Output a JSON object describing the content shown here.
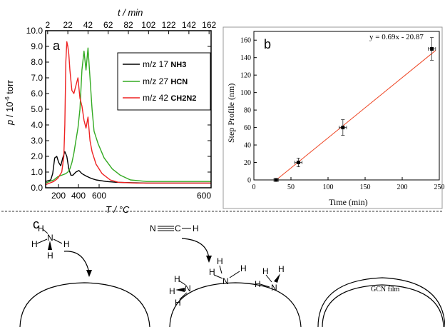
{
  "chart_data": [
    {
      "panel": "a",
      "type": "line",
      "xlabel": "T / °C",
      "x2label": "t / min",
      "ylabel": "p / 10-6 torr",
      "ylim": [
        0.0,
        10.0
      ],
      "yticks": [
        "0.0",
        "1.0",
        "2.0",
        "3.0",
        "4.0",
        "5.0",
        "6.0",
        "7.0",
        "8.0",
        "9.0",
        "10.0"
      ],
      "xticks": [
        "200",
        "400",
        "600",
        "600"
      ],
      "x2ticks": [
        "2",
        "22",
        "42",
        "62",
        "82",
        "102",
        "122",
        "142",
        "162"
      ],
      "x2lim": [
        0,
        164
      ],
      "series": [
        {
          "name": "m/z 17",
          "formula": "NH3",
          "color": "#000000",
          "t": [
            0,
            5,
            7,
            9,
            11,
            13,
            15,
            17,
            19,
            21,
            23,
            25,
            27,
            30,
            33,
            36,
            40,
            45,
            50,
            60,
            70,
            80,
            100,
            164
          ],
          "p": [
            0.4,
            0.5,
            0.9,
            1.9,
            2.0,
            1.6,
            1.4,
            1.9,
            2.3,
            2.0,
            1.2,
            0.8,
            0.8,
            1.0,
            1.1,
            0.9,
            0.75,
            0.6,
            0.5,
            0.4,
            0.35,
            0.33,
            0.3,
            0.3
          ]
        },
        {
          "name": "m/z 27",
          "formula": "HCN",
          "color": "#33aa22",
          "t": [
            0,
            8,
            12,
            16,
            20,
            22,
            24,
            26,
            28,
            30,
            32,
            34,
            36,
            38,
            40,
            42,
            44,
            46,
            48,
            52,
            58,
            66,
            74,
            84,
            100,
            130,
            164
          ],
          "p": [
            0.3,
            0.5,
            0.7,
            0.8,
            0.9,
            1.0,
            1.2,
            1.6,
            2.2,
            3.0,
            3.8,
            5.0,
            7.5,
            8.7,
            7.5,
            8.9,
            7.0,
            5.0,
            3.6,
            2.8,
            1.9,
            1.2,
            0.8,
            0.5,
            0.4,
            0.4,
            0.4
          ]
        },
        {
          "name": "m/z 42",
          "formula": "CH2N2",
          "color": "#ee2222",
          "t": [
            0,
            8,
            12,
            16,
            18,
            19,
            20,
            21,
            22,
            23,
            24,
            26,
            28,
            30,
            32,
            34,
            36,
            38,
            40,
            42,
            44,
            46,
            50,
            56,
            64,
            72,
            90,
            164
          ],
          "p": [
            0.2,
            0.4,
            0.6,
            1.0,
            2.0,
            4.0,
            8.0,
            9.3,
            9.0,
            8.5,
            7.5,
            6.2,
            6.0,
            6.5,
            7.0,
            5.7,
            5.2,
            4.3,
            3.8,
            4.5,
            3.0,
            2.3,
            1.5,
            0.9,
            0.5,
            0.35,
            0.3,
            0.3
          ]
        }
      ]
    },
    {
      "panel": "b",
      "type": "scatter",
      "xlabel": "Time (min)",
      "ylabel": "Step Profile (nm)",
      "xlim": [
        0,
        250
      ],
      "ylim": [
        0,
        170
      ],
      "xticks": [
        "0",
        "50",
        "100",
        "150",
        "200",
        "250"
      ],
      "yticks": [
        "0",
        "20",
        "40",
        "60",
        "80",
        "100",
        "120",
        "140",
        "160"
      ],
      "equation": "y = 0.69x - 20.87",
      "fit": {
        "slope": 0.69,
        "intercept": -20.87,
        "x_start": 30.2,
        "x_end": 245,
        "color": "#ee4422"
      },
      "points": [
        {
          "x": 30,
          "y": 0,
          "xerr": 3,
          "yerr": 0
        },
        {
          "x": 60,
          "y": 20,
          "xerr": 5,
          "yerr": 5
        },
        {
          "x": 120,
          "y": 60,
          "xerr": 5,
          "yerr": 9
        },
        {
          "x": 240,
          "y": 150,
          "xerr": 5,
          "yerr": 13
        }
      ]
    }
  ],
  "panel_c": {
    "letter": "c",
    "molecules": {
      "n": "N",
      "h": "H",
      "c": "C"
    },
    "film_label": "GCN film"
  }
}
